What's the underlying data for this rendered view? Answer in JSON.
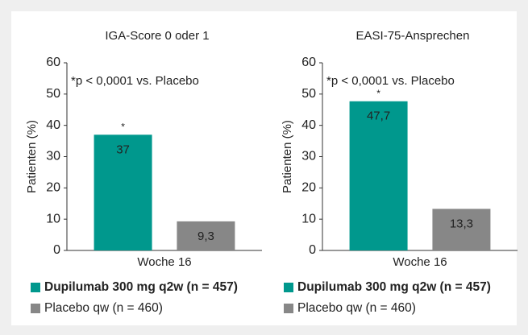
{
  "chart_data": [
    {
      "type": "bar",
      "title": "IGA-Score 0 oder 1",
      "ylabel": "Patienten (%)",
      "annotation": "*p < 0,0001 vs. Placebo",
      "categories": [
        "Woche 16"
      ],
      "series": [
        {
          "name": "Dupilumab 300 mg q2w (n = 457)",
          "color": "#00988d",
          "values": [
            37
          ],
          "value_labels": [
            "37"
          ],
          "marker": "*"
        },
        {
          "name": "Placebo qw (n = 460)",
          "color": "#878787",
          "values": [
            9.3
          ],
          "value_labels": [
            "9,3"
          ]
        }
      ],
      "ylim": [
        0,
        60
      ],
      "yticks": [
        0,
        10,
        20,
        30,
        40,
        50,
        60
      ]
    },
    {
      "type": "bar",
      "title": "EASI-75-Ansprechen",
      "ylabel": "Patienten (%)",
      "annotation": "*p < 0,0001 vs. Placebo",
      "categories": [
        "Woche 16"
      ],
      "series": [
        {
          "name": "Dupilumab 300 mg q2w (n = 457)",
          "color": "#00988d",
          "values": [
            47.7
          ],
          "value_labels": [
            "47,7"
          ],
          "marker": "*"
        },
        {
          "name": "Placebo qw (n = 460)",
          "color": "#878787",
          "values": [
            13.3
          ],
          "value_labels": [
            "13,3"
          ]
        }
      ],
      "ylim": [
        0,
        60
      ],
      "yticks": [
        0,
        10,
        20,
        30,
        40,
        50,
        60
      ]
    }
  ]
}
